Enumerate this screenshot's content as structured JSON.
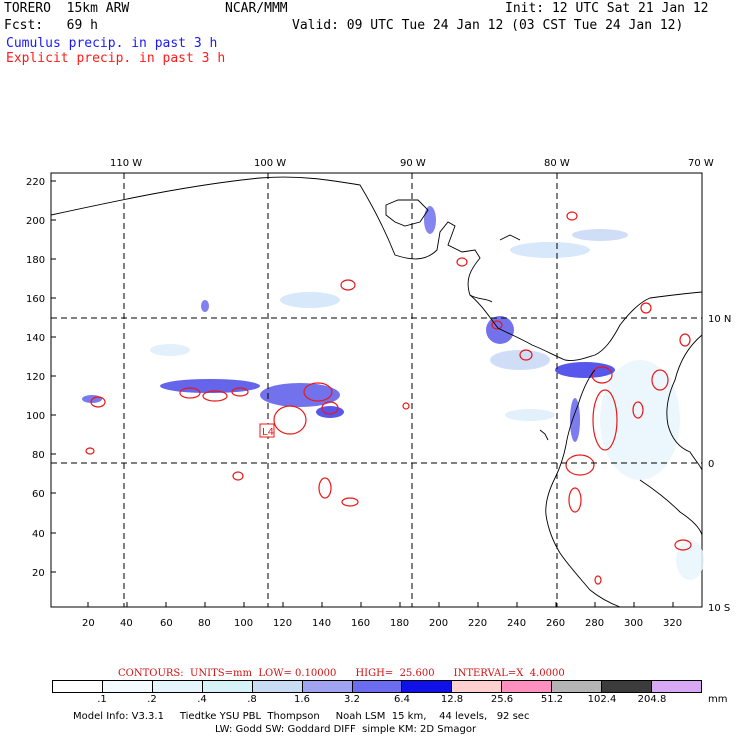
{
  "header": {
    "model": "TORERO  15km ARW",
    "forecast": "Fcst:   69 h",
    "org": "NCAR/MMM",
    "init": "Init: 12 UTC Sat 21 Jan 12",
    "valid": "Valid: 09 UTC Tue 24 Jan 12 (03 CST Tue 24 Jan 12)",
    "cumulus": "Cumulus precip. in past 3 h",
    "explicit": "Explicit precip. in past 3 h"
  },
  "map": {
    "lon_labels": [
      "110 W",
      "100 W",
      "90 W",
      "80 W",
      "70 W"
    ],
    "lat_labels": [
      "10 N",
      "0",
      "10 S"
    ],
    "y_ticks": [
      "220",
      "200",
      "180",
      "160",
      "140",
      "120",
      "100",
      "80",
      "60",
      "40",
      "20"
    ],
    "x_ticks": [
      "20",
      "40",
      "60",
      "80",
      "100",
      "120",
      "140",
      "160",
      "180",
      "200",
      "220",
      "240",
      "260",
      "280",
      "300",
      "320"
    ],
    "low_marker": "L4"
  },
  "contours_line": "CONTOURS:  UNITS=mm  LOW= 0.10000      HIGH=  25.600      INTERVAL=X  4.0000",
  "legend": {
    "labels": [
      ".1",
      ".2",
      ".4",
      ".8",
      "1.6",
      "3.2",
      "6.4",
      "12.8",
      "25.6",
      "51.2",
      "102.4",
      "204.8"
    ],
    "unit": "mm",
    "colors": [
      "#ffffff",
      "#f4fbff",
      "#e4f6fb",
      "#d6f3f7",
      "#c8dcf4",
      "#a0a4f0",
      "#6c6cf0",
      "#1010e8",
      "#ffd0d0",
      "#ff90c0",
      "#b4b4b4",
      "#3c3c3c",
      "#d8a8f4"
    ]
  },
  "model_info": {
    "line1": "Model Info: V3.3.1     Tiedtke YSU PBL  Thompson     Noah LSM  15 km,    44 levels,   92 sec",
    "line2": "LW: Godd SW: Goddard DIFF  simple KM: 2D Smagor"
  }
}
